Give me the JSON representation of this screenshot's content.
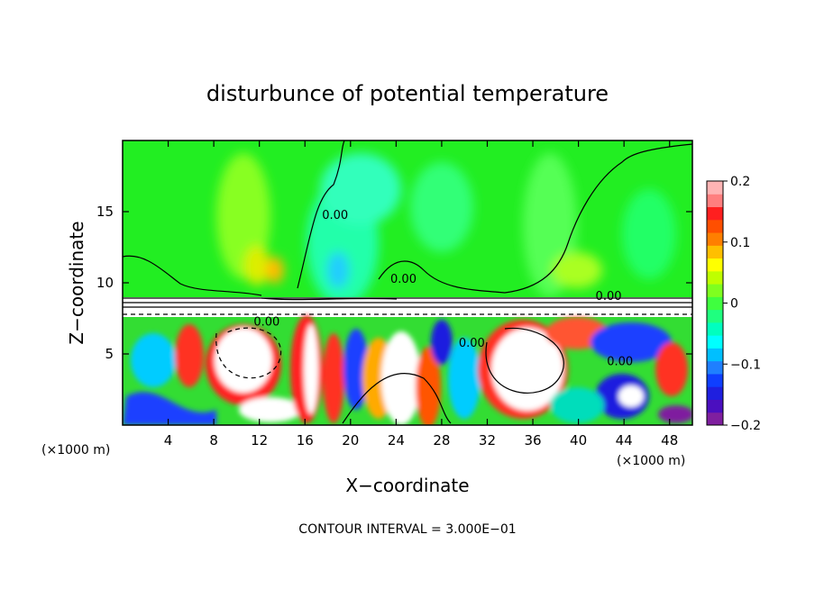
{
  "chart_data": {
    "type": "heatmap",
    "title": "disturbunce of potential temperature",
    "xlabel": "X−coordinate",
    "ylabel": "Z−coordinate",
    "x_unit_left": "(×1000 m)",
    "x_unit_right": "(×1000 m)",
    "xlim": [
      0,
      50
    ],
    "ylim": [
      0,
      20
    ],
    "x_ticks": [
      4,
      8,
      12,
      16,
      20,
      24,
      28,
      32,
      36,
      40,
      44,
      48
    ],
    "x_tick_labels": [
      "4",
      "8",
      "12",
      "16",
      "20",
      "24",
      "28",
      "32",
      "36",
      "40",
      "44",
      "48"
    ],
    "y_ticks": [
      5,
      10,
      15
    ],
    "y_tick_labels": [
      "5",
      "10",
      "15"
    ],
    "footer": "CONTOUR INTERVAL = 3.000E−01",
    "colorbar": {
      "range": [
        -0.2,
        0.2
      ],
      "ticks": [
        0.2,
        0.1,
        0,
        -0.1,
        -0.2
      ],
      "tick_labels": [
        "0.2",
        "0.1",
        "0",
        "−0.1",
        "−0.2"
      ],
      "colors": [
        "#7f1f9f",
        "#4b0fbf",
        "#1f1fdf",
        "#0f3fff",
        "#1f7fff",
        "#00bfff",
        "#00ffff",
        "#00ffbf",
        "#1fff7f",
        "#3fff3f",
        "#7fff1f",
        "#bfff00",
        "#ffff00",
        "#ffbf00",
        "#ff7f00",
        "#ff4f00",
        "#ff1f1f",
        "#ff7f7f",
        "#ffb4b4"
      ]
    },
    "contour_labels": [
      {
        "text": "0.00",
        "x": 17.5,
        "z": 14.5
      },
      {
        "text": "0.00",
        "x": 11.5,
        "z": 7.0
      },
      {
        "text": "0.00",
        "x": 23.5,
        "z": 10.0
      },
      {
        "text": "0.00",
        "x": 29.5,
        "z": 5.5
      },
      {
        "text": "0.00",
        "x": 41.5,
        "z": 8.8
      },
      {
        "text": "0.00",
        "x": 42.5,
        "z": 4.2
      }
    ]
  }
}
